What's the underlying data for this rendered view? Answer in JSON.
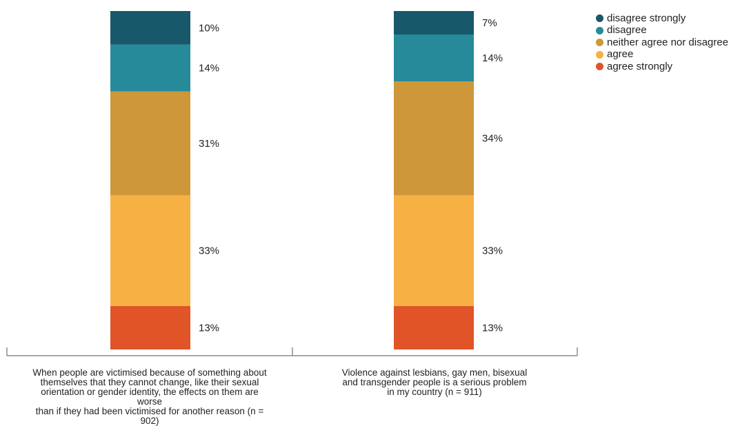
{
  "chart_data": {
    "type": "bar",
    "stacked": true,
    "orientation": "vertical",
    "value_unit": "%",
    "categories": [
      "When people are victimised because of something about\nthemselves that they cannot change, like their sexual\norientation or gender identity, the effects on them are worse\nthan if they had been victimised for another reason (n = 902)",
      "Violence against lesbians, gay men, bisexual\nand transgender people is a serious problem\nin my country (n = 911)"
    ],
    "series": [
      {
        "name": "agree strongly",
        "color": "#e05428",
        "values": [
          13,
          13
        ]
      },
      {
        "name": "agree",
        "color": "#f6b044",
        "values": [
          33,
          33
        ]
      },
      {
        "name": "neither agree nor disagree",
        "color": "#cd973a",
        "values": [
          31,
          34
        ]
      },
      {
        "name": "disagree",
        "color": "#268a9a",
        "values": [
          14,
          14
        ]
      },
      {
        "name": "disagree strongly",
        "color": "#17586a",
        "values": [
          10,
          7
        ]
      }
    ],
    "legend_order": [
      "disagree strongly",
      "disagree",
      "neither agree nor disagree",
      "agree",
      "agree strongly"
    ],
    "legend_position": "top-right",
    "ylim": [
      0,
      101
    ],
    "grid": false,
    "title": "",
    "xlabel": "",
    "ylabel": ""
  }
}
